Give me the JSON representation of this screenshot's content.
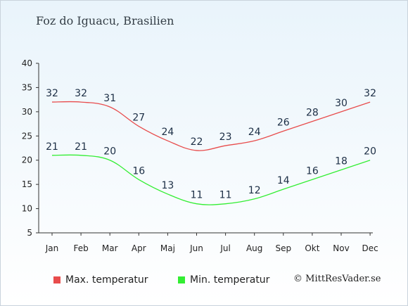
{
  "title": "Foz do Iguacu, Brasilien",
  "credit": "© MittResVader.se",
  "colors": {
    "max": "#e84c4c",
    "min": "#33ee33",
    "axis": "#333333",
    "label": "#1c2e45"
  },
  "chart_data": {
    "type": "line",
    "categories": [
      "Jan",
      "Feb",
      "Mar",
      "Apr",
      "Maj",
      "Jun",
      "Jul",
      "Aug",
      "Sep",
      "Okt",
      "Nov",
      "Dec"
    ],
    "series": [
      {
        "name": "Max. temperatur",
        "values": [
          32,
          32,
          31,
          27,
          24,
          22,
          23,
          24,
          26,
          28,
          30,
          32
        ]
      },
      {
        "name": "Min. temperatur",
        "values": [
          21,
          21,
          20,
          16,
          13,
          11,
          11,
          12,
          14,
          16,
          18,
          20
        ]
      }
    ],
    "ylim": [
      5,
      40
    ],
    "yticks": [
      5,
      10,
      15,
      20,
      25,
      30,
      35,
      40
    ],
    "grid": false,
    "legend_position": "bottom-left"
  }
}
